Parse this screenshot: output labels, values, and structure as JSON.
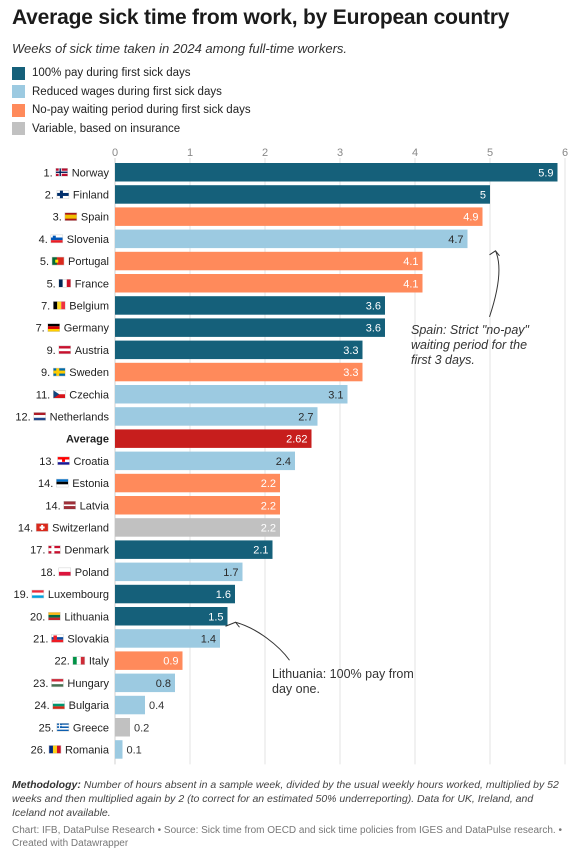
{
  "header": {
    "title": "Average sick time from work, by European country",
    "subtitle": "Weeks of sick time taken in 2024 among full-time workers."
  },
  "colors": {
    "full_pay": "#15607a",
    "reduced": "#9ccae1",
    "no_pay": "#ff8a5b",
    "variable": "#c1c1c1",
    "average": "#c71e1d"
  },
  "legend": [
    {
      "label": "100% pay during first sick days",
      "color": "#15607a"
    },
    {
      "label": "Reduced wages during first sick days",
      "color": "#9ccae1"
    },
    {
      "label": "No-pay waiting period during first sick days",
      "color": "#ff8a5b"
    },
    {
      "label": "Variable, based on insurance",
      "color": "#c1c1c1"
    }
  ],
  "chart_data": {
    "type": "bar",
    "orientation": "horizontal",
    "xlim": [
      0,
      6
    ],
    "x_ticks": [
      "0",
      "1",
      "2",
      "3",
      "4",
      "5",
      "6"
    ],
    "grid": true,
    "bars": [
      {
        "rank": "1.",
        "name": "Norway",
        "flag": "norway-flag-icon",
        "value": 5.9,
        "label": "5.9",
        "policy": "full_pay"
      },
      {
        "rank": "2.",
        "name": "Finland",
        "flag": "finland-flag-icon",
        "value": 5,
        "label": "5",
        "policy": "full_pay"
      },
      {
        "rank": "3.",
        "name": "Spain",
        "flag": "spain-flag-icon",
        "value": 4.9,
        "label": "4.9",
        "policy": "no_pay"
      },
      {
        "rank": "4.",
        "name": "Slovenia",
        "flag": "slovenia-flag-icon",
        "value": 4.7,
        "label": "4.7",
        "policy": "reduced"
      },
      {
        "rank": "5.",
        "name": "Portugal",
        "flag": "portugal-flag-icon",
        "value": 4.1,
        "label": "4.1",
        "policy": "no_pay"
      },
      {
        "rank": "5.",
        "name": "France",
        "flag": "france-flag-icon",
        "value": 4.1,
        "label": "4.1",
        "policy": "no_pay"
      },
      {
        "rank": "7.",
        "name": "Belgium",
        "flag": "belgium-flag-icon",
        "value": 3.6,
        "label": "3.6",
        "policy": "full_pay"
      },
      {
        "rank": "7.",
        "name": "Germany",
        "flag": "germany-flag-icon",
        "value": 3.6,
        "label": "3.6",
        "policy": "full_pay"
      },
      {
        "rank": "9.",
        "name": "Austria",
        "flag": "austria-flag-icon",
        "value": 3.3,
        "label": "3.3",
        "policy": "full_pay"
      },
      {
        "rank": "9.",
        "name": "Sweden",
        "flag": "sweden-flag-icon",
        "value": 3.3,
        "label": "3.3",
        "policy": "no_pay"
      },
      {
        "rank": "11.",
        "name": "Czechia",
        "flag": "czechia-flag-icon",
        "value": 3.1,
        "label": "3.1",
        "policy": "reduced"
      },
      {
        "rank": "12.",
        "name": "Netherlands",
        "flag": "netherlands-flag-icon",
        "value": 2.7,
        "label": "2.7",
        "policy": "reduced"
      },
      {
        "rank": "",
        "name": "Average",
        "flag": "",
        "value": 2.62,
        "label": "2.62",
        "policy": "average"
      },
      {
        "rank": "13.",
        "name": "Croatia",
        "flag": "croatia-flag-icon",
        "value": 2.4,
        "label": "2.4",
        "policy": "reduced"
      },
      {
        "rank": "14.",
        "name": "Estonia",
        "flag": "estonia-flag-icon",
        "value": 2.2,
        "label": "2.2",
        "policy": "no_pay"
      },
      {
        "rank": "14.",
        "name": "Latvia",
        "flag": "latvia-flag-icon",
        "value": 2.2,
        "label": "2.2",
        "policy": "no_pay"
      },
      {
        "rank": "14.",
        "name": "Switzerland",
        "flag": "switzerland-flag-icon",
        "value": 2.2,
        "label": "2.2",
        "policy": "variable"
      },
      {
        "rank": "17.",
        "name": "Denmark",
        "flag": "denmark-flag-icon",
        "value": 2.1,
        "label": "2.1",
        "policy": "full_pay"
      },
      {
        "rank": "18.",
        "name": "Poland",
        "flag": "poland-flag-icon",
        "value": 1.7,
        "label": "1.7",
        "policy": "reduced"
      },
      {
        "rank": "19.",
        "name": "Luxembourg",
        "flag": "luxembourg-flag-icon",
        "value": 1.6,
        "label": "1.6",
        "policy": "full_pay"
      },
      {
        "rank": "20.",
        "name": "Lithuania",
        "flag": "lithuania-flag-icon",
        "value": 1.5,
        "label": "1.5",
        "policy": "full_pay"
      },
      {
        "rank": "21.",
        "name": "Slovakia",
        "flag": "slovakia-flag-icon",
        "value": 1.4,
        "label": "1.4",
        "policy": "reduced"
      },
      {
        "rank": "22.",
        "name": "Italy",
        "flag": "italy-flag-icon",
        "value": 0.9,
        "label": "0.9",
        "policy": "no_pay"
      },
      {
        "rank": "23.",
        "name": "Hungary",
        "flag": "hungary-flag-icon",
        "value": 0.8,
        "label": "0.8",
        "policy": "reduced"
      },
      {
        "rank": "24.",
        "name": "Bulgaria",
        "flag": "bulgaria-flag-icon",
        "value": 0.4,
        "label": "0.4",
        "policy": "reduced"
      },
      {
        "rank": "25.",
        "name": "Greece",
        "flag": "greece-flag-icon",
        "value": 0.2,
        "label": "0.2",
        "policy": "variable"
      },
      {
        "rank": "26.",
        "name": "Romania",
        "flag": "romania-flag-icon",
        "value": 0.1,
        "label": "0.1",
        "policy": "reduced"
      }
    ],
    "annotations": [
      {
        "target": "Slovenia",
        "lines": [
          "Spain: Strict \"no-pay\"",
          "waiting period for the",
          "first 3 days."
        ]
      },
      {
        "target": "Lithuania",
        "lines": [
          "Lithuania: 100% pay from",
          "day one."
        ]
      }
    ]
  },
  "footer": {
    "methodology_label": "Methodology:",
    "methodology_text": " Number of hours absent in a sample week, divided by the usual weekly hours worked, multiplied by 52 weeks and then multiplied again by 2 (to correct for an estimated 50% underreporting). Data for UK, Ireland, and Iceland not available.",
    "source": "Chart: IFB, DataPulse Research • Source: Sick time from OECD and sick time policies from IGES and DataPulse research. • Created with Datawrapper"
  }
}
